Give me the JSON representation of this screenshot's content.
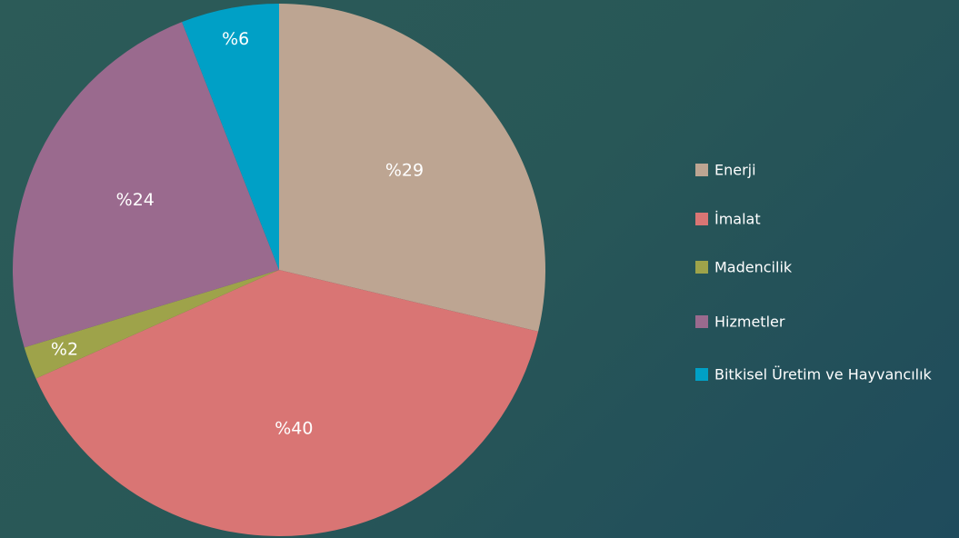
{
  "chart_data": {
    "type": "pie",
    "categories": [
      "Enerji",
      "İmalat",
      "Madencilik",
      "Hizmetler",
      "Bitkisel Üretim ve Hayvancılık"
    ],
    "values": [
      29,
      40,
      2,
      24,
      6
    ],
    "value_labels": [
      "%29",
      "%40",
      "%2",
      "%24",
      "%6"
    ],
    "colors": [
      "#bda592",
      "#d97574",
      "#9ea34a",
      "#9a6a8e",
      "#00a0c6"
    ],
    "legend": "right"
  }
}
